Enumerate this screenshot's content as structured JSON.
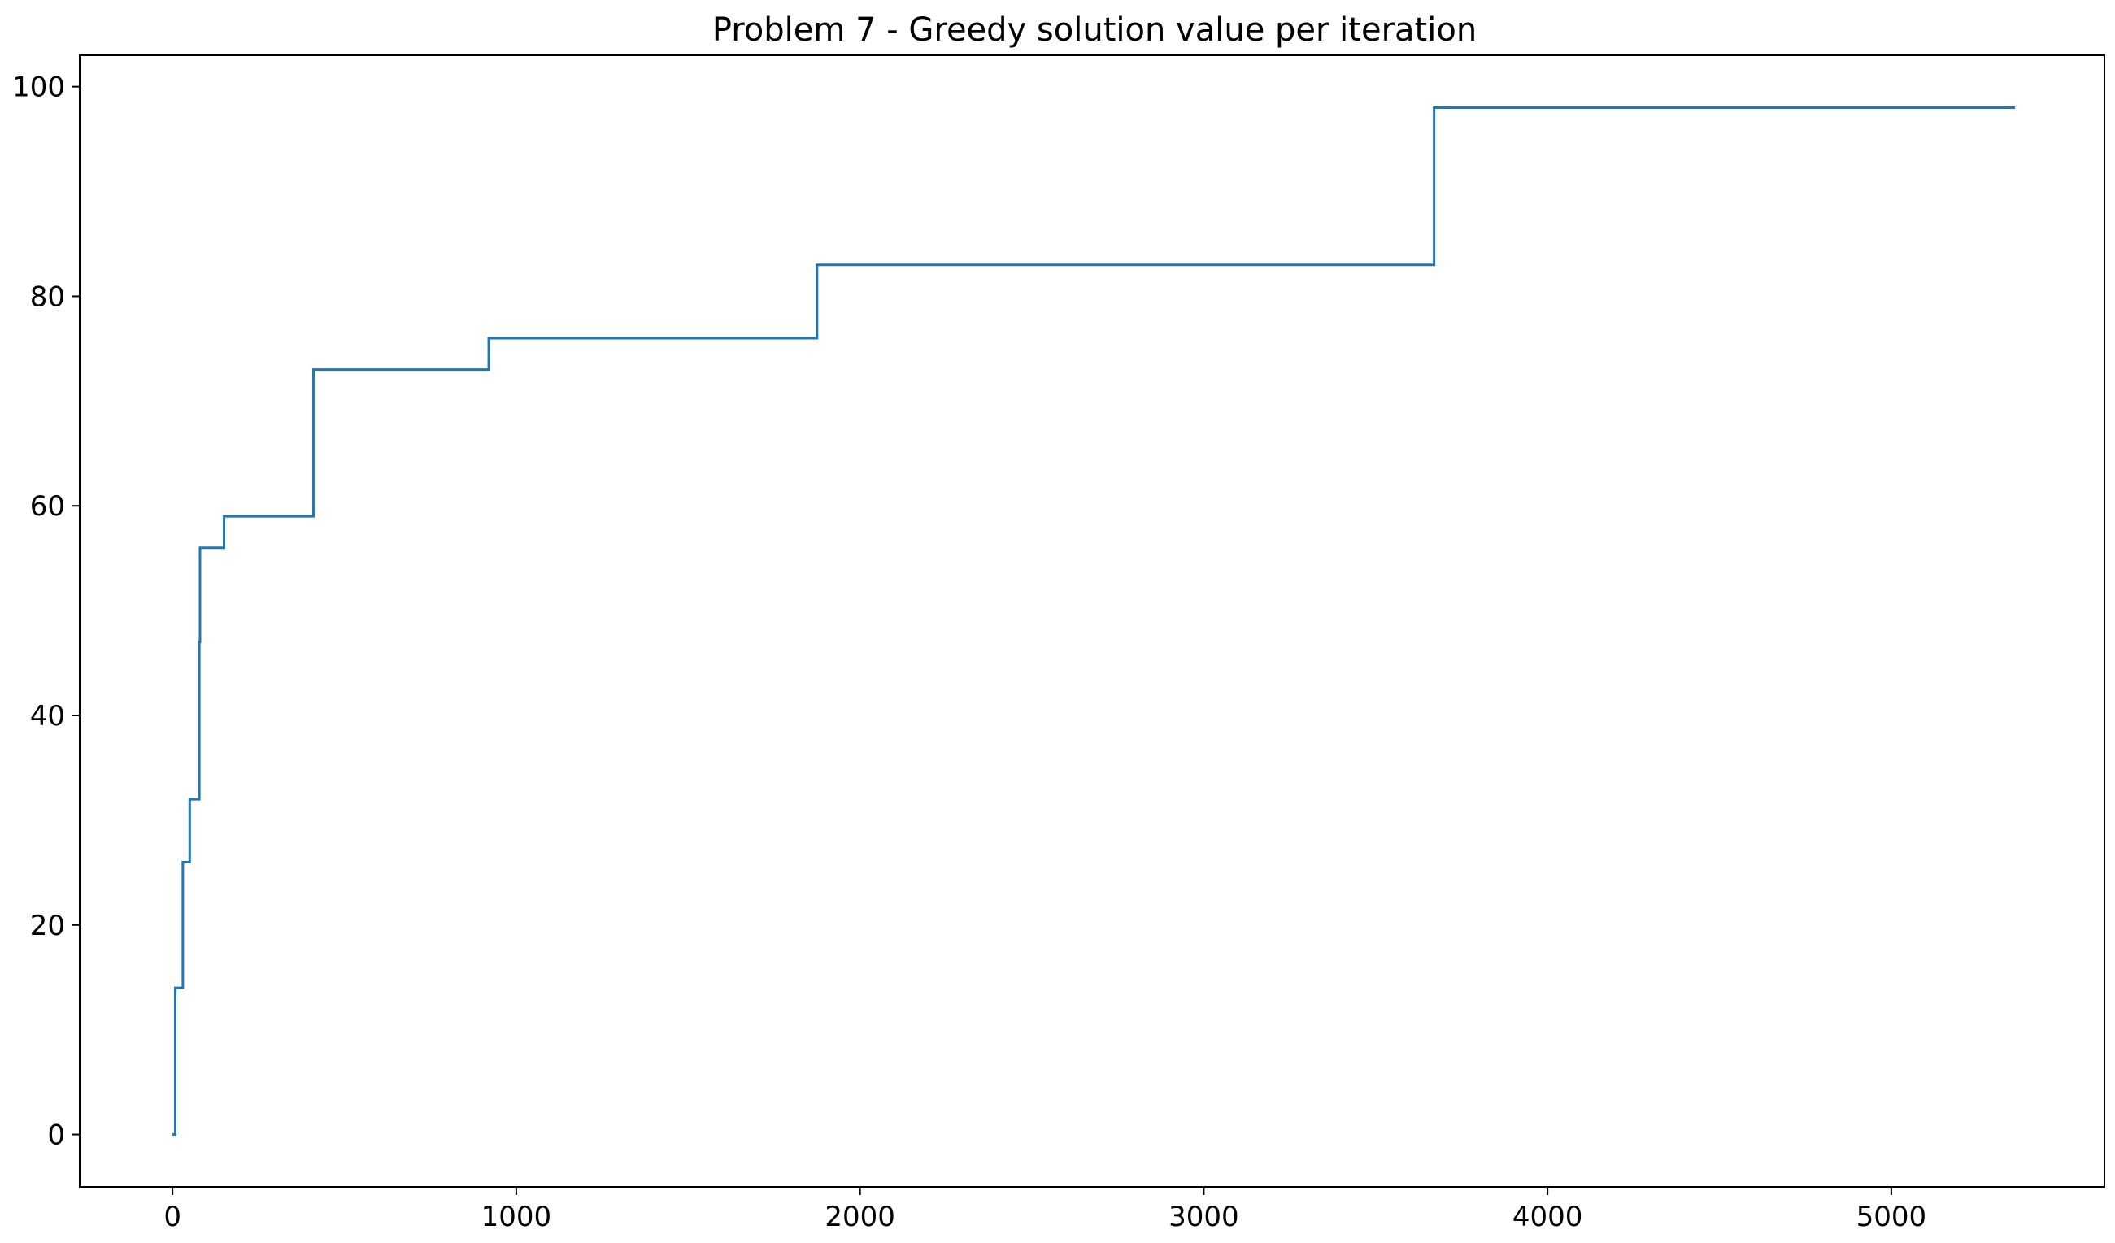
{
  "chart_data": {
    "type": "line",
    "drawstyle": "steps-post",
    "title": "Problem 7 - Greedy solution value per iteration",
    "xlabel": "",
    "ylabel": "",
    "xlim": [
      -270,
      5620
    ],
    "ylim": [
      -5,
      103
    ],
    "xticks": [
      0,
      1000,
      2000,
      3000,
      4000,
      5000
    ],
    "yticks": [
      0,
      20,
      40,
      60,
      80,
      100
    ],
    "grid": false,
    "legend": "none",
    "series": [
      {
        "color": "#1f77b4",
        "x": [
          0,
          8,
          30,
          50,
          78,
          80,
          82,
          150,
          410,
          920,
          1875,
          3670,
          5360
        ],
        "y": [
          0,
          14,
          26,
          32,
          47,
          56,
          56,
          59,
          73,
          76,
          83,
          98,
          98
        ]
      }
    ]
  }
}
